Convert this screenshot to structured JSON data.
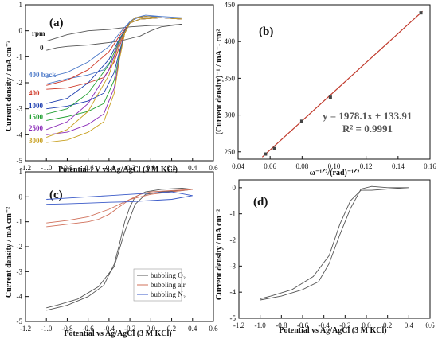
{
  "chart_data": [
    {
      "type": "line",
      "panel_label": "(a)",
      "xlabel": "Potential / V vs Ag/AgCl (3 M KCl)",
      "ylabel": "Current density / mA cm⁻²",
      "xlim": [
        -1.2,
        0.6
      ],
      "ylim": [
        -5,
        1
      ],
      "xticks": [
        "-1.2",
        "-1.0",
        "-0.8",
        "-0.6",
        "-0.4",
        "-0.2",
        "0.0",
        "0.2",
        "0.4",
        "0.6"
      ],
      "yticks": [
        "1",
        "0",
        "-1",
        "-2",
        "-3",
        "-4",
        "-5"
      ],
      "legend_title": "rpm",
      "curve_labels": [
        {
          "text": "0",
          "color": "#222222"
        },
        {
          "text": "400 back",
          "color": "#4a78c8"
        },
        {
          "text": "400",
          "color": "#d03a2a"
        },
        {
          "text": "1000",
          "color": "#1f3fb0"
        },
        {
          "text": "1500",
          "color": "#22a032"
        },
        {
          "text": "2500",
          "color": "#8a2ab8"
        },
        {
          "text": "3000",
          "color": "#c8a020"
        }
      ],
      "series": [
        {
          "name": "0",
          "color": "#555555",
          "x": [
            -1.0,
            -0.9,
            -0.8,
            -0.6,
            -0.4,
            -0.3,
            -0.2,
            -0.1,
            0.0,
            0.1,
            0.2,
            0.3,
            0.2,
            0.0,
            -0.2,
            -0.4,
            -0.6,
            -0.8,
            -1.0
          ],
          "y": [
            -0.75,
            -0.65,
            -0.6,
            -0.55,
            -0.45,
            -0.4,
            -0.3,
            -0.2,
            0.0,
            0.15,
            0.2,
            0.25,
            0.22,
            0.2,
            0.15,
            0.05,
            0.0,
            -0.15,
            -0.4
          ]
        },
        {
          "name": "400 back",
          "color": "#4a78c8",
          "x": [
            -1.0,
            -0.8,
            -0.6,
            -0.45,
            -0.35,
            -0.3,
            -0.25,
            -0.2,
            -0.15,
            -0.05,
            0.1,
            0.3,
            0.1,
            -0.1,
            -0.2,
            -0.3,
            -0.4,
            -0.6,
            -0.8,
            -1.0
          ],
          "y": [
            -2.05,
            -1.85,
            -1.7,
            -1.5,
            -1.0,
            -0.5,
            0.0,
            0.35,
            0.5,
            0.6,
            0.55,
            0.5,
            0.55,
            0.55,
            0.35,
            -0.1,
            -0.6,
            -1.2,
            -1.6,
            -1.8
          ]
        },
        {
          "name": "400",
          "color": "#d03a2a",
          "x": [
            -1.0,
            -0.8,
            -0.6,
            -0.45,
            -0.35,
            -0.3,
            -0.25,
            -0.2,
            -0.15,
            -0.05,
            0.1,
            0.3,
            0.1,
            -0.1,
            -0.2,
            -0.3,
            -0.4,
            -0.6,
            -0.8,
            -1.0
          ],
          "y": [
            -2.25,
            -2.2,
            -2.0,
            -1.8,
            -1.2,
            -0.6,
            -0.05,
            0.3,
            0.5,
            0.55,
            0.5,
            0.45,
            0.5,
            0.45,
            0.3,
            -0.2,
            -0.8,
            -1.5,
            -1.9,
            -2.1
          ]
        },
        {
          "name": "1000",
          "color": "#1f3fb0",
          "x": [
            -1.0,
            -0.8,
            -0.6,
            -0.45,
            -0.35,
            -0.3,
            -0.25,
            -0.2,
            -0.15,
            -0.05,
            0.1,
            0.3,
            0.1,
            -0.1,
            -0.2,
            -0.3,
            -0.4,
            -0.6,
            -0.8,
            -1.0
          ],
          "y": [
            -3.0,
            -2.9,
            -2.7,
            -2.4,
            -1.6,
            -0.8,
            -0.1,
            0.3,
            0.5,
            0.55,
            0.5,
            0.45,
            0.5,
            0.45,
            0.3,
            -0.3,
            -1.1,
            -2.0,
            -2.6,
            -2.8
          ]
        },
        {
          "name": "1500",
          "color": "#22a032",
          "x": [
            -1.0,
            -0.8,
            -0.6,
            -0.45,
            -0.35,
            -0.3,
            -0.25,
            -0.2,
            -0.15,
            -0.05,
            0.1,
            0.3,
            0.1,
            -0.1,
            -0.2,
            -0.3,
            -0.4,
            -0.6,
            -0.8,
            -1.0
          ],
          "y": [
            -3.45,
            -3.3,
            -3.1,
            -2.8,
            -1.9,
            -0.9,
            -0.1,
            0.3,
            0.5,
            0.55,
            0.5,
            0.45,
            0.5,
            0.45,
            0.3,
            -0.35,
            -1.3,
            -2.4,
            -3.0,
            -3.2
          ]
        },
        {
          "name": "2500",
          "color": "#8a2ab8",
          "x": [
            -1.0,
            -0.8,
            -0.6,
            -0.45,
            -0.35,
            -0.3,
            -0.25,
            -0.2,
            -0.15,
            -0.05,
            0.1,
            0.3,
            0.1,
            -0.1,
            -0.2,
            -0.3,
            -0.4,
            -0.6,
            -0.8,
            -1.0
          ],
          "y": [
            -4.0,
            -3.9,
            -3.6,
            -3.2,
            -2.2,
            -1.0,
            -0.1,
            0.3,
            0.5,
            0.55,
            0.5,
            0.45,
            0.5,
            0.45,
            0.3,
            -0.4,
            -1.5,
            -2.8,
            -3.5,
            -3.8
          ]
        },
        {
          "name": "3000",
          "color": "#c8a020",
          "x": [
            -1.0,
            -0.8,
            -0.6,
            -0.45,
            -0.35,
            -0.3,
            -0.25,
            -0.2,
            -0.15,
            -0.05,
            0.1,
            0.3,
            0.1,
            -0.1,
            -0.2,
            -0.3,
            -0.4,
            -0.6,
            -0.8,
            -1.0
          ],
          "y": [
            -4.3,
            -4.2,
            -3.9,
            -3.5,
            -2.4,
            -1.1,
            -0.1,
            0.3,
            0.5,
            0.55,
            0.5,
            0.45,
            0.5,
            0.45,
            0.3,
            -0.45,
            -1.7,
            -3.1,
            -3.8,
            -4.1
          ]
        }
      ]
    },
    {
      "type": "scatter",
      "panel_label": "(b)",
      "xlabel": "ω⁻¹ᐟ²/(rad)⁻¹ᐟ²",
      "ylabel": "(Current density)⁻¹ / mA⁻¹ cm²",
      "xlim": [
        0.04,
        0.16
      ],
      "ylim": [
        240,
        450
      ],
      "xticks": [
        "0.04",
        "0.06",
        "0.08",
        "0.10",
        "0.12",
        "0.14",
        "0.16"
      ],
      "yticks": [
        "250",
        "300",
        "350",
        "400",
        "450"
      ],
      "equation": "y = 1978.1x + 133.91",
      "r_squared": "R² = 0.9991",
      "fit": {
        "slope": 1978.1,
        "intercept": 133.91
      },
      "points": {
        "x": [
          0.0571,
          0.0627,
          0.0798,
          0.0977,
          0.1543
        ],
        "y": [
          247.0,
          254.5,
          291.6,
          324.3,
          439.0
        ]
      }
    },
    {
      "type": "line",
      "panel_label": "(c)",
      "xlabel": "Potential vs Ag/AgCl (3 M KCl)",
      "ylabel": "Current density / mA cm⁻²",
      "xlim": [
        -1.2,
        0.6
      ],
      "ylim": [
        -5,
        1
      ],
      "xticks": [
        "-1.2",
        "-1.0",
        "-0.8",
        "-0.6",
        "-0.4",
        "-0.2",
        "0.0",
        "0.2",
        "0.4",
        "0.6"
      ],
      "yticks": [
        "1",
        "0",
        "-1",
        "-2",
        "-3",
        "-4",
        "-5"
      ],
      "legend": [
        "bubbling O₂",
        "bubbling air",
        "bubbling N₂"
      ],
      "series": [
        {
          "name": "bubbling O₂",
          "color": "#555555",
          "x": [
            -1.0,
            -0.8,
            -0.6,
            -0.45,
            -0.35,
            -0.3,
            -0.25,
            -0.2,
            -0.15,
            -0.05,
            0.1,
            0.3,
            0.4,
            0.3,
            0.1,
            -0.05,
            -0.15,
            -0.25,
            -0.35,
            -0.5,
            -0.7,
            -0.9,
            -1.0
          ],
          "y": [
            -4.55,
            -4.35,
            -4.0,
            -3.55,
            -2.7,
            -1.9,
            -1.0,
            -0.4,
            0.0,
            0.2,
            0.3,
            0.35,
            0.3,
            0.25,
            0.2,
            0.1,
            -0.3,
            -1.4,
            -2.8,
            -3.6,
            -4.1,
            -4.35,
            -4.45
          ]
        },
        {
          "name": "bubbling air",
          "color": "#d0705a",
          "x": [
            -1.0,
            -0.8,
            -0.6,
            -0.5,
            -0.4,
            -0.3,
            -0.2,
            -0.1,
            0.0,
            0.2,
            0.4,
            0.2,
            0.0,
            -0.2,
            -0.4,
            -0.6,
            -0.8,
            -1.0
          ],
          "y": [
            -1.2,
            -1.1,
            -1.0,
            -0.9,
            -0.7,
            -0.4,
            -0.1,
            0.1,
            0.2,
            0.25,
            0.3,
            0.2,
            0.1,
            -0.1,
            -0.5,
            -0.8,
            -0.95,
            -1.05
          ]
        },
        {
          "name": "bubbling N₂",
          "color": "#3a5ac8",
          "x": [
            -1.0,
            -0.8,
            -0.6,
            -0.4,
            -0.2,
            0.0,
            0.2,
            0.4,
            0.2,
            0.0,
            -0.2,
            -0.4,
            -0.6,
            -0.8,
            -1.0
          ],
          "y": [
            -0.3,
            -0.28,
            -0.25,
            -0.22,
            -0.2,
            -0.15,
            -0.1,
            0.05,
            0.2,
            0.15,
            0.1,
            0.05,
            0.0,
            -0.05,
            -0.1
          ]
        }
      ]
    },
    {
      "type": "line",
      "panel_label": "(d)",
      "xlabel": "Potential vs Ag/AgCl (3 M KCl)",
      "ylabel": "Current density / mA cm⁻²",
      "xlim": [
        -1.2,
        0.6
      ],
      "ylim": [
        -5,
        0.3
      ],
      "xticks": [
        "-1.2",
        "-1.0",
        "-0.8",
        "-0.6",
        "-0.4",
        "-0.2",
        "0.0",
        "0.2",
        "0.4",
        "0.6"
      ],
      "yticks": [
        "0",
        "-1",
        "-2",
        "-3",
        "-4",
        "-5"
      ],
      "series": [
        {
          "name": "",
          "color": "#555555",
          "x": [
            -1.0,
            -0.8,
            -0.6,
            -0.45,
            -0.35,
            -0.25,
            -0.15,
            -0.05,
            0.05,
            0.2,
            0.4,
            0.2,
            0.05,
            -0.05,
            -0.15,
            -0.25,
            -0.35,
            -0.5,
            -0.7,
            -0.9,
            -1.0
          ],
          "y": [
            -4.3,
            -4.15,
            -3.9,
            -3.6,
            -2.9,
            -1.8,
            -0.8,
            -0.05,
            0.05,
            0.0,
            0.0,
            -0.05,
            -0.1,
            -0.1,
            -0.5,
            -1.4,
            -2.6,
            -3.4,
            -3.9,
            -4.15,
            -4.25
          ]
        }
      ]
    }
  ]
}
